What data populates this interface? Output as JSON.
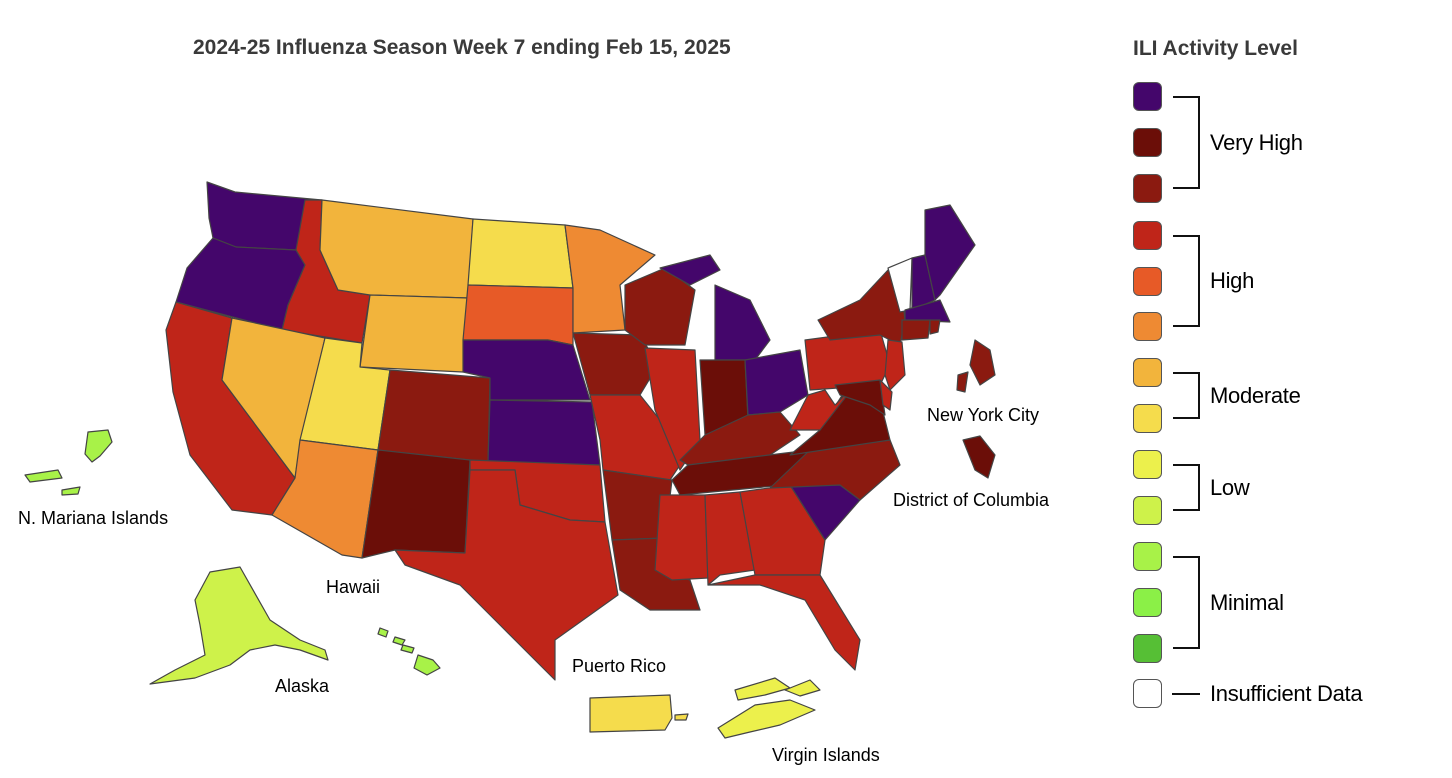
{
  "title": "2024-25 Influenza Season Week 7 ending Feb 15, 2025",
  "legend": {
    "title": "ILI Activity Level",
    "levels": [
      {
        "name": "Very High",
        "colors": [
          "#44066b",
          "#6b0e08",
          "#8b1a10"
        ]
      },
      {
        "name": "High",
        "colors": [
          "#bf2519",
          "#e75a27",
          "#ee8a33"
        ]
      },
      {
        "name": "Moderate",
        "colors": [
          "#f2b43c",
          "#f5dc4c"
        ]
      },
      {
        "name": "Low",
        "colors": [
          "#ecf04c",
          "#cef24a"
        ]
      },
      {
        "name": "Minimal",
        "colors": [
          "#a8f248",
          "#8bf047",
          "#56bf35"
        ]
      },
      {
        "name": "Insufficient Data",
        "colors": [
          "#ffffff"
        ]
      }
    ]
  },
  "region_labels": {
    "new_york_city": "New York City",
    "district_of_columbia": "District of Columbia",
    "n_mariana_islands": "N. Mariana Islands",
    "hawaii": "Hawaii",
    "alaska": "Alaska",
    "puerto_rico": "Puerto Rico",
    "virgin_islands": "Virgin Islands"
  },
  "map_data": {
    "WA": "Very High",
    "OR": "Very High",
    "CA": "High",
    "ID": "High",
    "NV": "Moderate",
    "MT": "Moderate",
    "WY": "Moderate",
    "UT": "Moderate",
    "AZ": "High",
    "CO": "Very High",
    "NM": "Very High",
    "ND": "Moderate",
    "SD": "High",
    "NE": "Very High",
    "KS": "Very High",
    "OK": "High",
    "TX": "High",
    "MN": "High",
    "IA": "Very High",
    "MO": "High",
    "AR": "Very High",
    "LA": "Very High",
    "WI": "Very High",
    "IL": "High",
    "MI": "Very High",
    "IN": "Very High",
    "OH": "Very High",
    "KY": "Very High",
    "TN": "Very High",
    "MS": "High",
    "AL": "High",
    "GA": "High",
    "FL": "High",
    "SC": "Very High",
    "NC": "Very High",
    "VA": "Very High",
    "WV": "High",
    "PA": "High",
    "NY": "Very High",
    "NJ": "High",
    "MD": "Very High",
    "DE": "High",
    "CT": "Very High",
    "RI": "Very High",
    "MA": "Very High",
    "VT": "Insufficient Data",
    "NH": "Very High",
    "ME": "Very High",
    "NYC": "Very High",
    "DC": "Very High",
    "AK": "Low",
    "HI": "Minimal",
    "PR": "Moderate",
    "VI": "Low",
    "MP": "Minimal"
  }
}
